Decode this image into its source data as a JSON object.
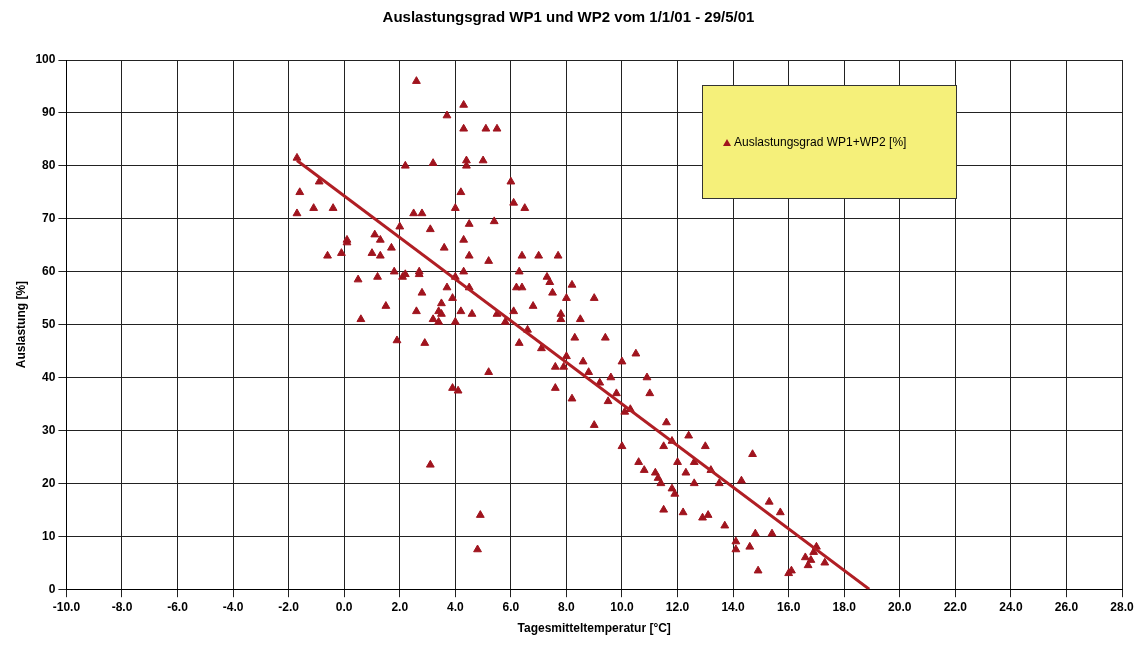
{
  "chart_data": {
    "type": "scatter",
    "title": "Auslastungsgrad WP1 und WP2 vom 1/1/01 - 29/5/01",
    "xlabel": "Tagesmitteltemperatur [°C]",
    "ylabel": "Auslastung [%]",
    "xlim": [
      -10,
      28
    ],
    "xticks": [
      {
        "value": -10,
        "label": "-10.0"
      },
      {
        "value": -8,
        "label": "-8.0"
      },
      {
        "value": -6,
        "label": "-6.0"
      },
      {
        "value": -4,
        "label": "-4.0"
      },
      {
        "value": -2,
        "label": "-2.0"
      },
      {
        "value": 0,
        "label": "0.0"
      },
      {
        "value": 2,
        "label": "2.0"
      },
      {
        "value": 4,
        "label": "4.0"
      },
      {
        "value": 6,
        "label": "6.0"
      },
      {
        "value": 8,
        "label": "8.0"
      },
      {
        "value": 10,
        "label": "10.0"
      },
      {
        "value": 12,
        "label": "12.0"
      },
      {
        "value": 14,
        "label": "14.0"
      },
      {
        "value": 16,
        "label": "16.0"
      },
      {
        "value": 18,
        "label": "18.0"
      },
      {
        "value": 20,
        "label": "20.0"
      },
      {
        "value": 22,
        "label": "22.0"
      },
      {
        "value": 24,
        "label": "24.0"
      },
      {
        "value": 26,
        "label": "26.0"
      },
      {
        "value": 28,
        "label": "28.0"
      }
    ],
    "ylim": [
      0,
      100
    ],
    "yticks": [
      0,
      10,
      20,
      30,
      40,
      50,
      60,
      70,
      80,
      90,
      100
    ],
    "grid": true,
    "legend": "top right",
    "marker": "triangle",
    "series": [
      {
        "name": "Auslastungsgrad WP1+WP2 [%]",
        "color": "#a0141e",
        "x": [
          -1.7,
          -1.6,
          -1.7,
          -1.1,
          -0.9,
          -0.6,
          -0.4,
          -0.1,
          0.1,
          0.1,
          0.5,
          0.6,
          1.0,
          1.1,
          1.2,
          1.3,
          1.3,
          1.5,
          1.7,
          1.8,
          1.9,
          2.0,
          2.1,
          2.2,
          2.2,
          2.5,
          2.6,
          2.6,
          2.7,
          2.7,
          2.8,
          2.8,
          2.9,
          3.1,
          3.1,
          3.2,
          3.2,
          3.4,
          3.4,
          3.5,
          3.5,
          3.6,
          3.7,
          3.7,
          3.9,
          3.9,
          4.0,
          4.0,
          4.0,
          4.1,
          4.2,
          4.2,
          4.3,
          4.3,
          4.3,
          4.3,
          4.4,
          4.4,
          4.5,
          4.5,
          4.5,
          4.6,
          4.8,
          4.9,
          5.0,
          5.1,
          5.2,
          5.2,
          5.4,
          5.5,
          5.5,
          5.8,
          6.0,
          6.1,
          6.1,
          6.2,
          6.3,
          6.3,
          6.4,
          6.4,
          6.5,
          6.6,
          6.8,
          7.0,
          7.1,
          7.3,
          7.4,
          7.5,
          7.6,
          7.6,
          7.7,
          7.8,
          7.8,
          7.9,
          8.0,
          8.0,
          8.2,
          8.2,
          8.3,
          8.5,
          8.6,
          8.8,
          9.0,
          9.0,
          9.2,
          9.4,
          9.5,
          9.6,
          9.8,
          10.0,
          10.0,
          10.1,
          10.3,
          10.5,
          10.6,
          10.8,
          10.9,
          11.0,
          11.2,
          11.3,
          11.4,
          11.5,
          11.5,
          11.6,
          11.8,
          11.8,
          11.9,
          12.0,
          12.2,
          12.3,
          12.4,
          12.6,
          12.6,
          12.9,
          13.0,
          13.1,
          13.2,
          13.5,
          13.7,
          14.1,
          14.1,
          14.3,
          14.6,
          14.7,
          14.8,
          14.9,
          15.3,
          15.4,
          15.7,
          16.0,
          16.1,
          16.6,
          16.7,
          16.8,
          16.9,
          17.0,
          17.3
        ],
        "values": [
          81.5,
          75,
          71,
          72,
          77,
          63,
          72,
          63.5,
          65.5,
          66,
          58.5,
          51,
          63.5,
          67,
          59,
          66,
          63,
          53.5,
          64.5,
          60,
          47,
          68.5,
          59,
          80,
          59.5,
          71,
          52.5,
          96,
          59.5,
          60,
          56,
          71,
          46.5,
          68,
          23.5,
          51,
          80.5,
          50.5,
          52.5,
          54,
          52,
          64.5,
          89.5,
          57,
          55,
          38,
          72,
          50.5,
          59,
          37.5,
          75,
          52.5,
          91.5,
          87,
          66,
          60,
          80,
          81,
          63,
          69,
          57,
          52,
          7.5,
          14,
          81,
          87,
          62,
          41,
          69.5,
          87,
          52,
          50.5,
          77,
          73,
          52.5,
          57,
          46.5,
          60,
          63,
          57,
          72,
          49,
          53.5,
          63,
          45.5,
          59,
          58,
          56,
          42,
          38,
          63,
          52,
          51,
          42,
          55,
          44,
          57.5,
          36,
          47.5,
          51,
          43,
          41,
          31,
          55,
          39,
          47.5,
          35.5,
          40,
          37,
          27,
          43,
          33.5,
          34,
          44.5,
          24,
          22.5,
          40,
          37,
          22,
          21,
          20,
          27,
          15,
          31.5,
          28,
          19,
          18,
          24,
          14.5,
          22,
          29,
          20,
          24,
          13.5,
          27,
          14,
          22.5,
          20,
          12,
          9,
          7.5,
          20.5,
          8,
          25.5,
          10.5,
          3.5,
          16.5,
          10.5,
          14.5,
          3,
          3.5,
          6,
          4.5,
          5.5,
          7,
          8,
          5
        ]
      },
      {
        "type": "line",
        "color": "#b01e24",
        "marker": "none",
        "line_style": "solid",
        "x": [
          -1.7,
          18.9
        ],
        "values": [
          81,
          0
        ]
      }
    ]
  }
}
